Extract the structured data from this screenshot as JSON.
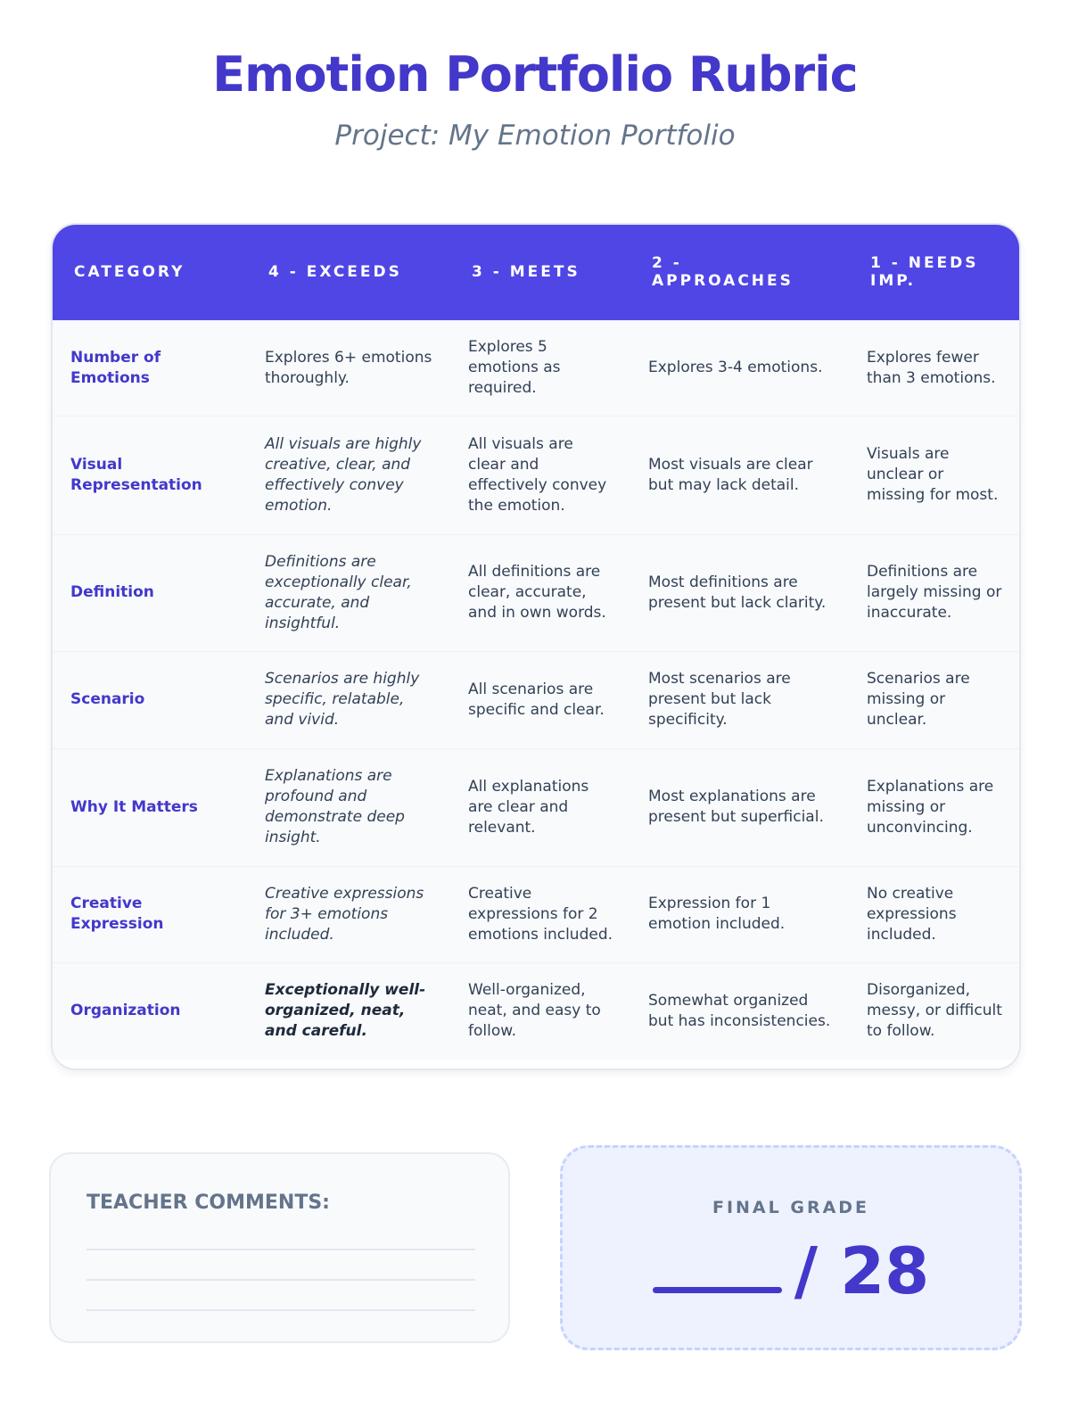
{
  "title": "Emotion Portfolio Rubric",
  "subtitle": "Project: My Emotion Portfolio",
  "headers": [
    "CATEGORY",
    "4 - EXCEEDS",
    "3 - MEETS",
    "2 - APPROACHES",
    "1 - NEEDS IMP."
  ],
  "rows": [
    {
      "category": "Number of Emotions",
      "c4": "Explores 6+ emotions thoroughly.",
      "c3": "Explores 5 emotions as required.",
      "c2": "Explores 3-4 emotions.",
      "c1": "Explores fewer than 3 emotions."
    },
    {
      "category": "Visual Representation",
      "c4": "All visuals are highly creative, clear, and effectively convey emotion.",
      "c3": "All visuals are clear and effectively convey the emotion.",
      "c2": "Most visuals are clear but may lack detail.",
      "c1": "Visuals are unclear or missing for most."
    },
    {
      "category": "Definition",
      "c4": "Definitions are exceptionally clear, accurate, and insightful.",
      "c3": "All definitions are clear, accurate, and in own words.",
      "c2": "Most definitions are present but lack clarity.",
      "c1": "Definitions are largely missing or inaccurate."
    },
    {
      "category": "Scenario",
      "c4": "Scenarios are highly specific, relatable, and vivid.",
      "c3": "All scenarios are specific and clear.",
      "c2": "Most scenarios are present but lack specificity.",
      "c1": "Scenarios are missing or unclear."
    },
    {
      "category": "Why It Matters",
      "c4": "Explanations are profound and demonstrate deep insight.",
      "c3": "All explanations are clear and relevant.",
      "c2": "Most explanations are present but superficial.",
      "c1": "Explanations are missing or unconvincing."
    },
    {
      "category": "Creative Expression",
      "c4": "Creative expressions for 3+ emotions included.",
      "c3": "Creative expressions for 2 emotions included.",
      "c2": "Expression for 1 emotion included.",
      "c1": "No creative expressions included."
    },
    {
      "category": "Organization",
      "c4": "Exceptionally well-organized, neat, and careful.",
      "c3": "Well-organized, neat, and easy to follow.",
      "c2": "Somewhat organized but has inconsistencies.",
      "c1": "Disorganized, messy, or difficult to follow."
    }
  ],
  "comments_label": "TEACHER COMMENTS:",
  "final_grade_label": "FINAL GRADE",
  "final_grade_total": "/ 28",
  "colors": {
    "accent": "#4f46e5",
    "heading": "#4338ca"
  }
}
